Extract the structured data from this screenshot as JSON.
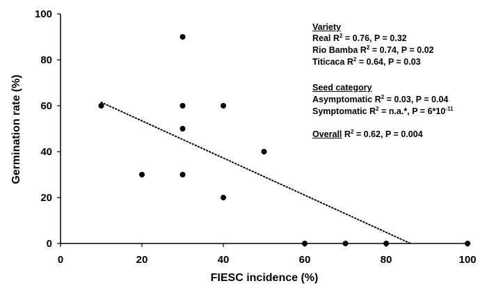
{
  "chart_data": {
    "type": "scatter",
    "xlabel": "FIESC incidence (%)",
    "ylabel": "Germination rate (%)",
    "xlim": [
      0,
      100
    ],
    "ylim": [
      0,
      100
    ],
    "x_ticks": [
      "0",
      "20",
      "40",
      "60",
      "80",
      "100"
    ],
    "y_ticks": [
      "0",
      "20",
      "40",
      "60",
      "80",
      "100"
    ],
    "grid": false,
    "points": [
      {
        "x": 10,
        "y": 60
      },
      {
        "x": 20,
        "y": 30
      },
      {
        "x": 30,
        "y": 90
      },
      {
        "x": 30,
        "y": 60
      },
      {
        "x": 30,
        "y": 50
      },
      {
        "x": 30,
        "y": 30
      },
      {
        "x": 40,
        "y": 60
      },
      {
        "x": 40,
        "y": 20
      },
      {
        "x": 50,
        "y": 40
      },
      {
        "x": 60,
        "y": 0
      },
      {
        "x": 70,
        "y": 0
      },
      {
        "x": 80,
        "y": 0
      },
      {
        "x": 100,
        "y": 0
      }
    ],
    "trendline": {
      "style": "dotted",
      "from": {
        "x": 10,
        "y": 61.5
      },
      "to": {
        "x": 86,
        "y": 0
      }
    },
    "point_color": "#000000"
  },
  "annotation": {
    "variety": {
      "heading": "Variety",
      "lines": [
        {
          "name": "Real",
          "r2": "= 0.76, P = 0.32"
        },
        {
          "name": "Rio Bamba",
          "r2": "= 0.74, P = 0.02"
        },
        {
          "name": "Titicaca",
          "r2": "= 0.64, P = 0.03"
        }
      ]
    },
    "seed": {
      "heading": "Seed category",
      "asym_name": "Asymptomatic",
      "asym_val": "= 0.03, P = 0.04",
      "sym_name": "Symptomatic",
      "sym_val": "= n.a.*, P = 6*10",
      "sym_exp": "-11"
    },
    "overall": {
      "heading": "Overall",
      "val": "= 0.62, P = 0.004"
    },
    "r_letter": "R",
    "r_sup": "2"
  }
}
